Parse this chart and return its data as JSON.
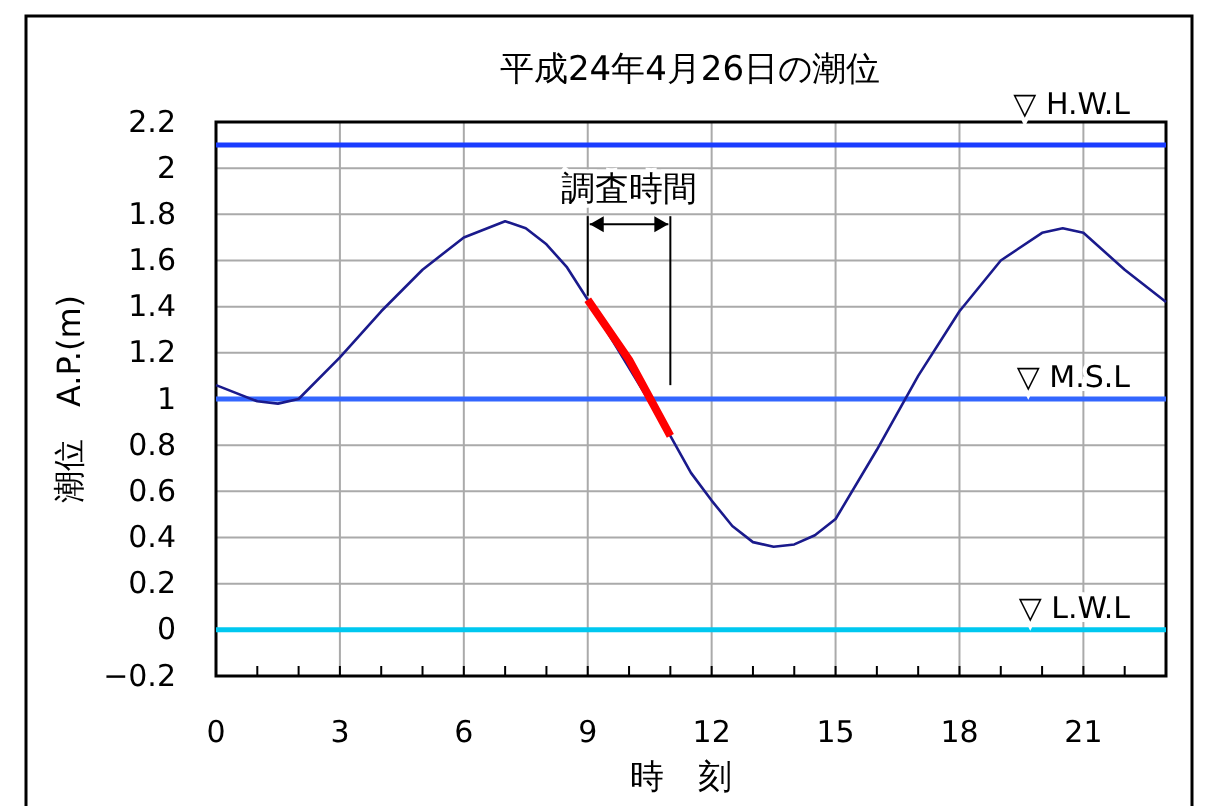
{
  "chart_data": {
    "type": "line",
    "title": "平成24年4月26日の潮位",
    "xlabel": "時　刻",
    "ylabel": "潮位　A.P.(m)",
    "xlim": [
      0,
      23
    ],
    "ylim": [
      -0.2,
      2.2
    ],
    "xticks": [
      0,
      {
        "value": 1,
        "label": null
      },
      {
        "value": 2,
        "label": null
      },
      3,
      {
        "value": 4,
        "label": null
      },
      {
        "value": 5,
        "label": null
      },
      6,
      {
        "value": 7,
        "label": null
      },
      {
        "value": 8,
        "label": null
      },
      9,
      {
        "value": 10,
        "label": null
      },
      {
        "value": 11,
        "label": null
      },
      12,
      {
        "value": 13,
        "label": null
      },
      {
        "value": 14,
        "label": null
      },
      15,
      {
        "value": 16,
        "label": null
      },
      {
        "value": 17,
        "label": null
      },
      18,
      {
        "value": 19,
        "label": null
      },
      {
        "value": 20,
        "label": null
      },
      21,
      {
        "value": 22,
        "label": null
      }
    ],
    "yticks": [
      {
        "value": -0.2,
        "label": "−0.2"
      },
      0,
      0.2,
      0.4,
      0.6,
      0.8,
      1,
      1.2,
      1.4,
      1.6,
      1.8,
      2,
      2.2
    ],
    "grid": true,
    "marker": "none",
    "line_style": "solid",
    "series": [
      {
        "color": "#1a1a8c",
        "x": [
          0,
          1,
          1.5,
          2,
          3,
          4,
          5,
          6,
          7,
          7.5,
          8,
          8.5,
          9,
          10,
          11,
          11.5,
          12,
          12.5,
          13,
          13.5,
          14,
          14.5,
          15,
          16,
          17,
          18,
          19,
          20,
          20.5,
          21,
          22,
          23
        ],
        "values": [
          1.06,
          0.99,
          0.98,
          1.0,
          1.18,
          1.38,
          1.56,
          1.7,
          1.77,
          1.74,
          1.67,
          1.57,
          1.43,
          null,
          0.84,
          0.68,
          0.56,
          0.45,
          0.38,
          0.36,
          0.37,
          0.41,
          0.48,
          0.78,
          1.1,
          1.38,
          1.6,
          1.72,
          1.74,
          1.72,
          1.56,
          1.42
        ]
      },
      {
        "color": "#ff0000",
        "x": [
          9,
          10,
          11
        ],
        "values": [
          1.43,
          1.17,
          0.84
        ]
      }
    ],
    "ref_lines": [
      {
        "axis": "y",
        "value": 2.1,
        "label": "▽ H.W.L",
        "color": "#1a3cff"
      },
      {
        "axis": "y",
        "value": 1,
        "label": "▽ M.S.L",
        "color": "#3366ff"
      },
      {
        "axis": "y",
        "value": 0,
        "label": "▽ L.W.L",
        "color": "#00c8f0"
      }
    ],
    "annotations": [
      {
        "text": "調査時間",
        "x": 9,
        "y": 1.43
      }
    ]
  }
}
